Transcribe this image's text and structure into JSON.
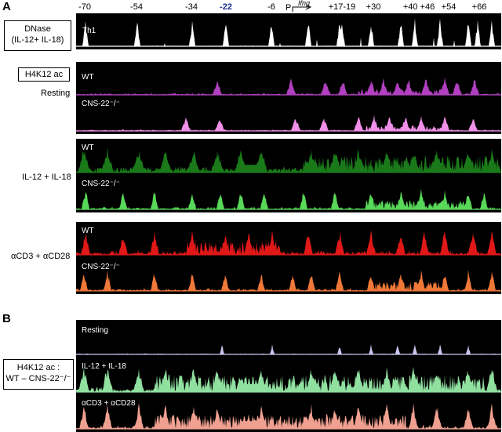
{
  "panel_a": {
    "letter": "A",
    "positions": [
      "-70",
      "-54",
      "-34",
      "-22",
      "-6",
      "+17-19",
      "+30",
      "+40 +46",
      "+54",
      "+66"
    ],
    "highlight_position": "-22",
    "promoter_label": "P",
    "gene_label": "Ifng",
    "dnase_label": "DNase\n(IL-12+ IL-18)",
    "dnase_track_label": "Th1",
    "h4k12_label": "H4K12 ac",
    "conditions": [
      "Resting",
      "IL-12 + IL-18",
      "αCD3 + αCD28"
    ],
    "wt_label": "WT",
    "ko_label": "CNS-22⁻/⁻"
  },
  "panel_b": {
    "letter": "B",
    "side_label": "H4K12 ac :\nWT – CNS-22⁻/⁻",
    "tracks": [
      "Resting",
      "IL-12 + IL-18",
      "αCD3 + αCD28"
    ]
  },
  "colors": {
    "dnase": "#ffffff",
    "resting_wt": "#b040c0",
    "resting_ko": "#f090e8",
    "il12_wt": "#1a7a1a",
    "il12_ko": "#58d858",
    "cd3_wt": "#e01818",
    "cd3_ko": "#f07838",
    "diff_resting": "#c8c8f0",
    "diff_il12": "#90e0a0",
    "diff_cd3": "#f0a090"
  }
}
